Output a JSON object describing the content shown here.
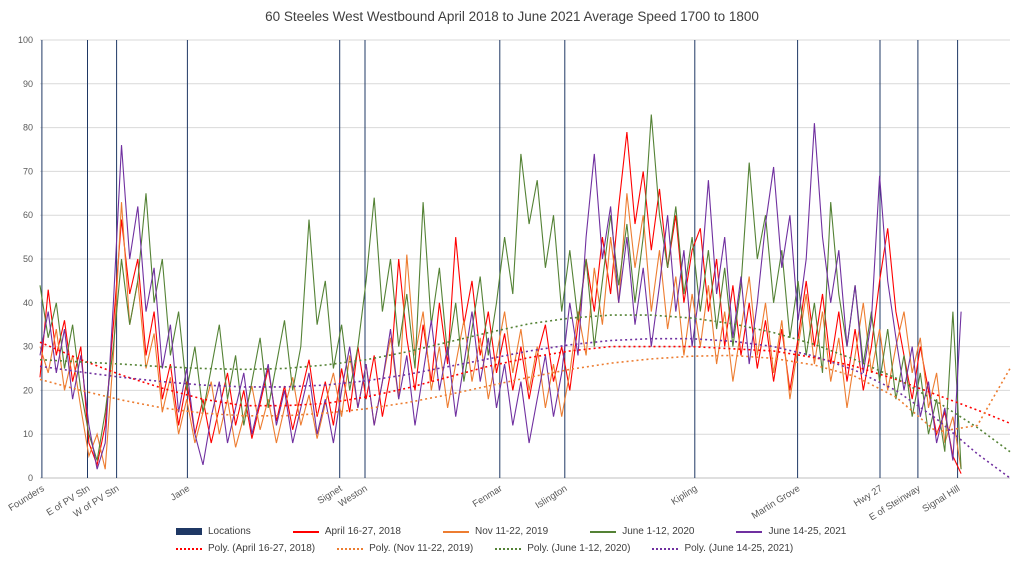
{
  "chart_data": {
    "type": "line",
    "title": "60 Steeles West Westbound April 2018 to June 2021 Average Speed 1700 to 1800",
    "ylim": [
      0,
      100
    ],
    "ytick_step": 10,
    "x_count": 120,
    "grid": "horizontal",
    "legend_position": "bottom",
    "colors": {
      "locations": "#1f3864",
      "grid": "#d9d9d9",
      "axis_text": "#595959",
      "red": "#ff0000",
      "orange": "#ed7d31",
      "green": "#548235",
      "purple": "#7030a0"
    },
    "legend": {
      "locations_label": "Locations"
    },
    "locations": [
      {
        "label": "Founders",
        "pos": 0.002
      },
      {
        "label": "E of PV Stn",
        "pos": 0.049
      },
      {
        "label": "W of PV Stn",
        "pos": 0.079
      },
      {
        "label": "Jane",
        "pos": 0.152
      },
      {
        "label": "Signet",
        "pos": 0.309
      },
      {
        "label": "Weston",
        "pos": 0.335
      },
      {
        "label": "Fenmar",
        "pos": 0.474
      },
      {
        "label": "Islington",
        "pos": 0.541
      },
      {
        "label": "Kipling",
        "pos": 0.675
      },
      {
        "label": "Martin Grove",
        "pos": 0.781
      },
      {
        "label": "Hwy 27",
        "pos": 0.866
      },
      {
        "label": "E of Steinway",
        "pos": 0.905
      },
      {
        "label": "Signal Hill",
        "pos": 0.946
      }
    ],
    "series": [
      {
        "name": "April 16-27, 2018",
        "color": "#ff0000",
        "values": [
          23,
          43,
          28,
          36,
          22,
          30,
          8,
          3,
          12,
          35,
          59,
          42,
          50,
          28,
          38,
          18,
          26,
          12,
          22,
          10,
          18,
          8,
          16,
          24,
          12,
          20,
          9,
          17,
          25,
          13,
          21,
          11,
          19,
          27,
          14,
          22,
          12,
          25,
          15,
          30,
          18,
          28,
          14,
          24,
          50,
          32,
          20,
          35,
          22,
          40,
          26,
          55,
          35,
          45,
          28,
          38,
          24,
          33,
          20,
          30,
          18,
          28,
          35,
          22,
          30,
          20,
          35,
          50,
          38,
          55,
          42,
          62,
          79,
          58,
          70,
          52,
          66,
          48,
          60,
          40,
          52,
          57,
          38,
          50,
          30,
          44,
          28,
          40,
          25,
          36,
          22,
          34,
          20,
          32,
          45,
          30,
          42,
          26,
          38,
          22,
          34,
          20,
          30,
          45,
          57,
          38,
          28,
          18,
          30,
          20,
          10,
          15,
          5,
          1
        ]
      },
      {
        "name": "Nov 11-22, 2019",
        "color": "#ed7d31",
        "values": [
          30,
          24,
          34,
          20,
          28,
          16,
          5,
          10,
          2,
          28,
          63,
          35,
          45,
          25,
          33,
          15,
          23,
          10,
          18,
          8,
          15,
          22,
          10,
          18,
          7,
          14,
          21,
          11,
          18,
          8,
          16,
          23,
          12,
          19,
          9,
          17,
          24,
          14,
          28,
          16,
          26,
          12,
          22,
          32,
          18,
          51,
          28,
          38,
          20,
          30,
          16,
          26,
          36,
          22,
          32,
          18,
          28,
          38,
          24,
          34,
          20,
          30,
          16,
          26,
          14,
          24,
          38,
          28,
          48,
          35,
          55,
          40,
          65,
          48,
          60,
          38,
          52,
          34,
          46,
          28,
          42,
          30,
          44,
          26,
          38,
          22,
          34,
          46,
          28,
          40,
          24,
          36,
          18,
          30,
          42,
          26,
          38,
          22,
          32,
          16,
          28,
          40,
          24,
          34,
          20,
          30,
          38,
          24,
          32,
          16,
          24,
          8,
          14,
          2
        ]
      },
      {
        "name": "June 1-12, 2020",
        "color": "#548235",
        "values": [
          44,
          32,
          40,
          25,
          35,
          20,
          10,
          4,
          15,
          30,
          50,
          35,
          45,
          65,
          40,
          50,
          28,
          38,
          20,
          30,
          15,
          25,
          35,
          18,
          28,
          12,
          22,
          32,
          16,
          26,
          36,
          20,
          30,
          59,
          35,
          45,
          25,
          35,
          20,
          30,
          45,
          64,
          38,
          50,
          30,
          42,
          25,
          63,
          35,
          48,
          28,
          40,
          22,
          34,
          46,
          28,
          40,
          55,
          42,
          74,
          58,
          68,
          48,
          60,
          38,
          52,
          36,
          50,
          30,
          45,
          60,
          44,
          58,
          40,
          55,
          83,
          60,
          48,
          62,
          42,
          55,
          38,
          52,
          34,
          48,
          30,
          44,
          72,
          50,
          60,
          40,
          52,
          32,
          45,
          28,
          40,
          24,
          63,
          42,
          30,
          44,
          26,
          38,
          22,
          34,
          18,
          28,
          14,
          24,
          10,
          18,
          6,
          38,
          2
        ]
      },
      {
        "name": "June 14-25, 2021",
        "color": "#7030a0",
        "values": [
          28,
          38,
          24,
          34,
          18,
          28,
          12,
          2,
          8,
          40,
          76,
          50,
          62,
          38,
          48,
          25,
          35,
          15,
          25,
          10,
          3,
          14,
          22,
          8,
          16,
          24,
          10,
          18,
          26,
          12,
          20,
          8,
          16,
          24,
          10,
          18,
          8,
          20,
          30,
          16,
          26,
          12,
          22,
          34,
          18,
          28,
          12,
          24,
          36,
          20,
          30,
          14,
          26,
          38,
          22,
          32,
          16,
          26,
          12,
          22,
          8,
          18,
          28,
          14,
          24,
          40,
          28,
          55,
          74,
          50,
          62,
          40,
          55,
          35,
          48,
          30,
          44,
          60,
          38,
          52,
          30,
          44,
          68,
          42,
          55,
          32,
          46,
          26,
          40,
          58,
          71,
          48,
          60,
          36,
          50,
          81,
          55,
          40,
          52,
          30,
          44,
          24,
          36,
          69,
          45,
          32,
          20,
          30,
          14,
          22,
          8,
          16,
          4,
          38
        ]
      }
    ],
    "trendlines": [
      {
        "name": "Poly. (April 16-27, 2018)",
        "color": "#ff0000",
        "sample_step": 5,
        "values": [
          31,
          27,
          23.5,
          20.5,
          18,
          16.5,
          16.5,
          17,
          18.5,
          20.5,
          23,
          25.5,
          27.5,
          29,
          30,
          30,
          30,
          29.5,
          29,
          27.5,
          25.5,
          22.5,
          19,
          15.5,
          12.5
        ]
      },
      {
        "name": "Poly. (Nov 11-22, 2019)",
        "color": "#ed7d31",
        "sample_step": 5,
        "values": [
          22.5,
          20,
          17.8,
          16,
          14.8,
          14.2,
          14.2,
          14.8,
          15.8,
          17.2,
          19,
          21,
          23,
          24.8,
          26.2,
          27.2,
          27.8,
          28,
          27.3,
          25.8,
          23.2,
          18.5,
          10.5,
          12,
          25
        ]
      },
      {
        "name": "Poly. (June 1-12, 2020)",
        "color": "#548235",
        "sample_step": 5,
        "values": [
          27,
          26.5,
          26,
          25.4,
          25,
          24.8,
          25,
          25.8,
          27,
          28.8,
          31,
          33.2,
          35.2,
          36.5,
          37.2,
          37.2,
          36.5,
          35.2,
          33.2,
          30.5,
          27,
          22.8,
          17.5,
          11.5,
          6
        ]
      },
      {
        "name": "Poly. (June 14-25, 2021)",
        "color": "#7030a0",
        "sample_step": 5,
        "values": [
          25.5,
          24.2,
          23,
          22,
          21.2,
          20.8,
          20.8,
          21.2,
          22.2,
          23.6,
          25.4,
          27.2,
          29,
          30.4,
          31.4,
          31.8,
          31.8,
          31.2,
          30,
          27.8,
          24.6,
          20,
          13.5,
          5.5,
          0
        ]
      }
    ]
  }
}
